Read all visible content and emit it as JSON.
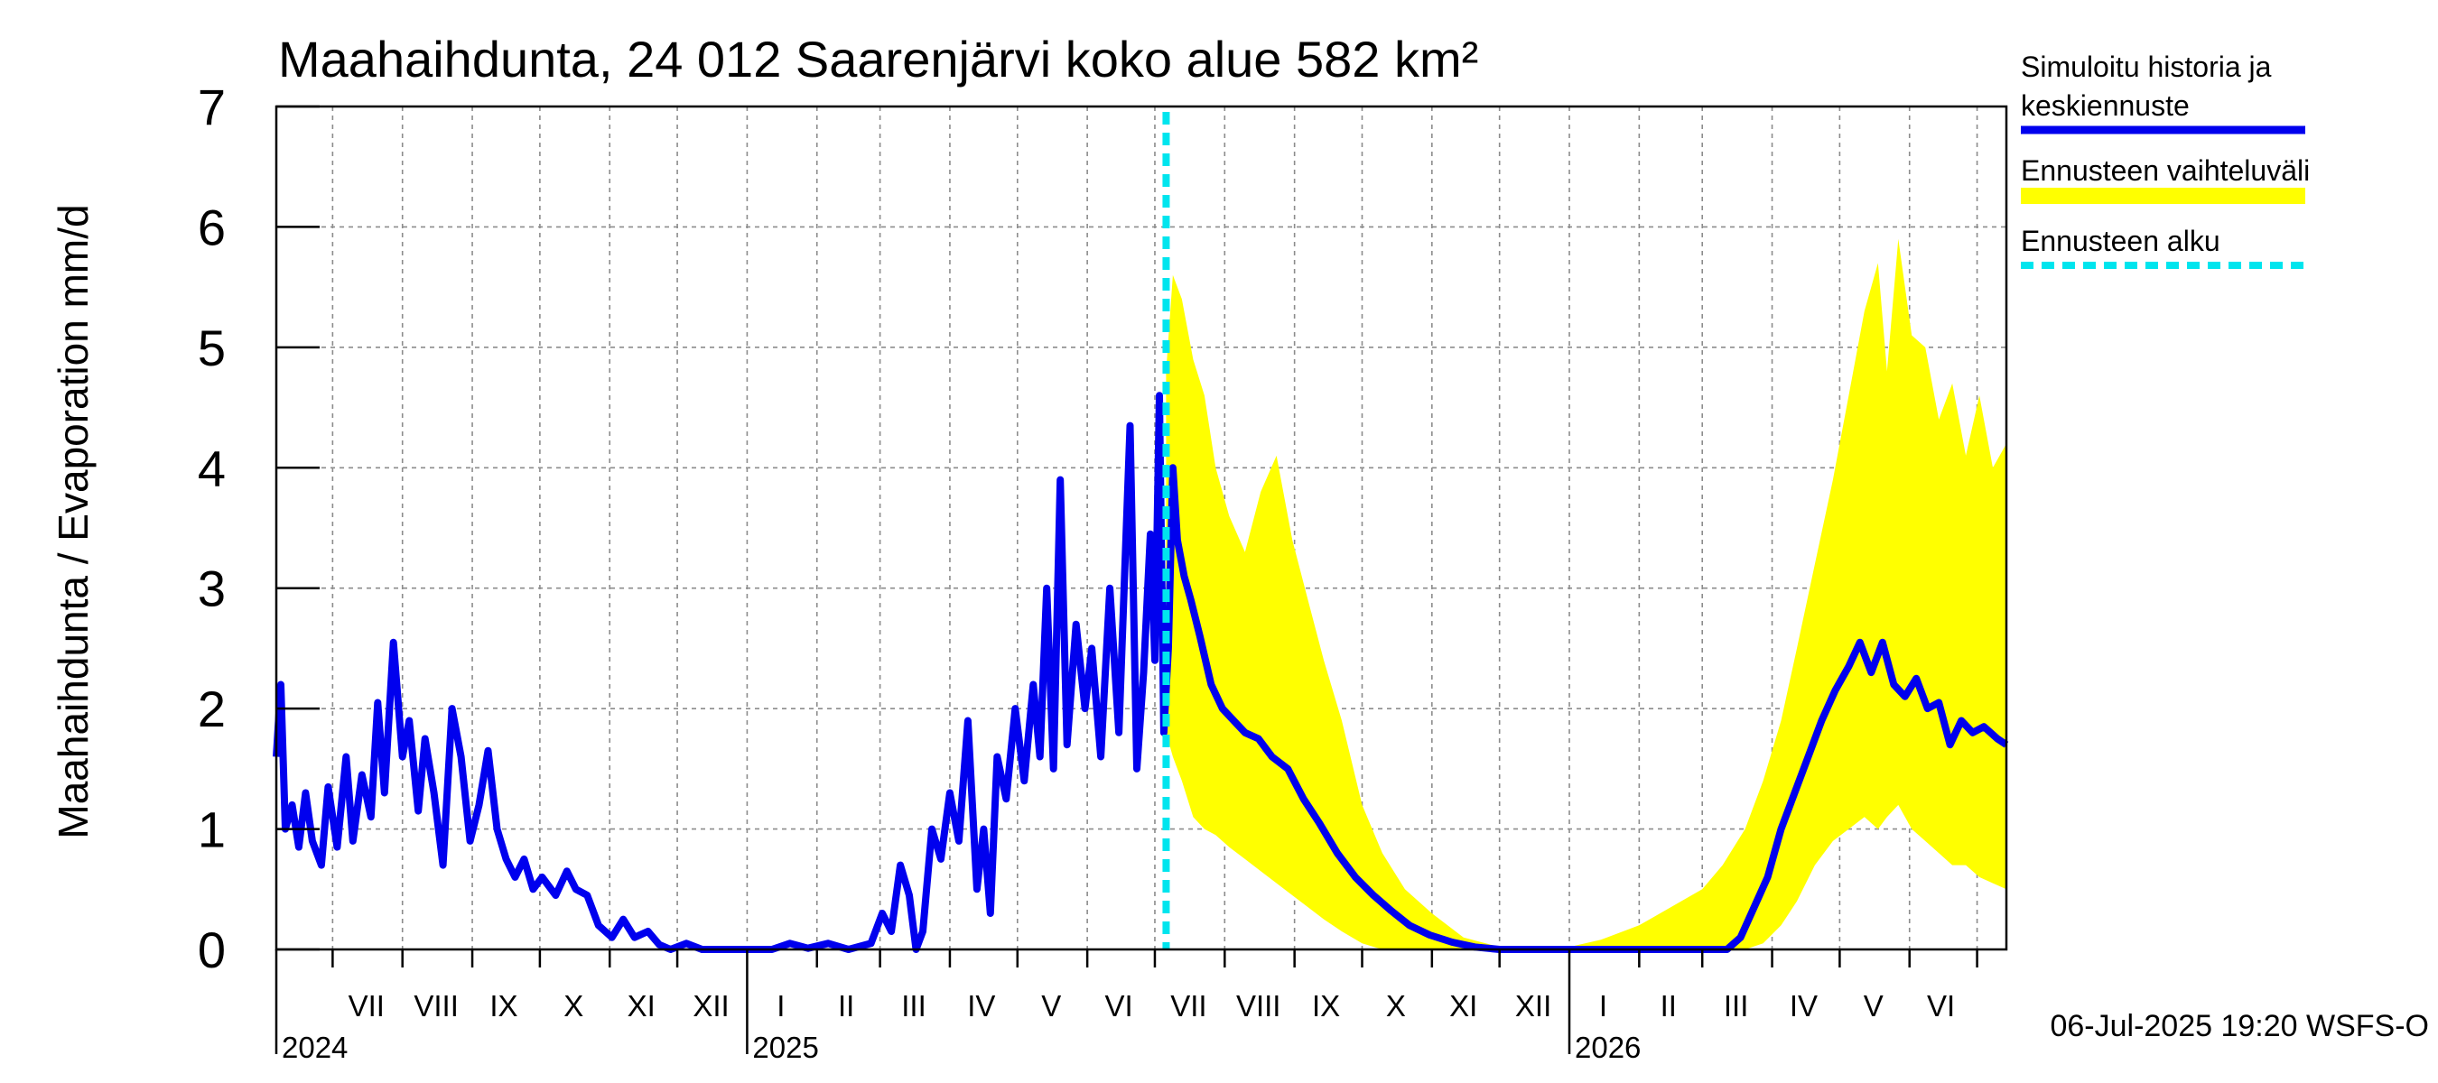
{
  "chart_data": {
    "type": "line",
    "title": "Maahaihdunta, 24 012 Saarenjärvi koko alue 582 km²",
    "ylabel": "Maahaihdunta / Evaporation   mm/d",
    "ylim": [
      0,
      7
    ],
    "yticks": [
      "0",
      "1",
      "2",
      "3",
      "4",
      "5",
      "6",
      "7"
    ],
    "grid": true,
    "legend_position": "right",
    "x_start": "2024-06-06",
    "x_end": "2026-07-14",
    "forecast_start": "2025-07-06",
    "month_labels": [
      {
        "label": "VII",
        "date": "2024-07-16"
      },
      {
        "label": "VIII",
        "date": "2024-08-16"
      },
      {
        "label": "IX",
        "date": "2024-09-15"
      },
      {
        "label": "X",
        "date": "2024-10-16"
      },
      {
        "label": "XI",
        "date": "2024-11-15"
      },
      {
        "label": "XII",
        "date": "2024-12-16"
      },
      {
        "label": "I",
        "date": "2025-01-16"
      },
      {
        "label": "II",
        "date": "2025-02-14"
      },
      {
        "label": "III",
        "date": "2025-03-16"
      },
      {
        "label": "IV",
        "date": "2025-04-15"
      },
      {
        "label": "V",
        "date": "2025-05-16"
      },
      {
        "label": "VI",
        "date": "2025-06-15"
      },
      {
        "label": "VII",
        "date": "2025-07-16"
      },
      {
        "label": "VIII",
        "date": "2025-08-16"
      },
      {
        "label": "IX",
        "date": "2025-09-15"
      },
      {
        "label": "X",
        "date": "2025-10-16"
      },
      {
        "label": "XI",
        "date": "2025-11-15"
      },
      {
        "label": "XII",
        "date": "2025-12-16"
      },
      {
        "label": "I",
        "date": "2026-01-16"
      },
      {
        "label": "II",
        "date": "2026-02-14"
      },
      {
        "label": "III",
        "date": "2026-03-16"
      },
      {
        "label": "IV",
        "date": "2026-04-15"
      },
      {
        "label": "V",
        "date": "2026-05-16"
      },
      {
        "label": "VI",
        "date": "2026-06-15"
      }
    ],
    "month_boundaries": [
      "2024-07-01",
      "2024-08-01",
      "2024-09-01",
      "2024-10-01",
      "2024-11-01",
      "2024-12-01",
      "2025-01-01",
      "2025-02-01",
      "2025-03-01",
      "2025-04-01",
      "2025-05-01",
      "2025-06-01",
      "2025-07-01",
      "2025-08-01",
      "2025-09-01",
      "2025-10-01",
      "2025-11-01",
      "2025-12-01",
      "2026-01-01",
      "2026-02-01",
      "2026-03-01",
      "2026-04-01",
      "2026-05-01",
      "2026-06-01",
      "2026-07-01"
    ],
    "year_labels": [
      {
        "label": "2024",
        "date": "2024-06-06"
      },
      {
        "label": "2025",
        "date": "2025-01-01"
      },
      {
        "label": "2026",
        "date": "2026-01-01"
      }
    ],
    "series": [
      {
        "name": "Simuloitu historia ja keskiennuste",
        "color": "#0000ee",
        "points": [
          [
            "2024-06-06",
            1.6
          ],
          [
            "2024-06-08",
            2.2
          ],
          [
            "2024-06-10",
            1.0
          ],
          [
            "2024-06-13",
            1.2
          ],
          [
            "2024-06-16",
            0.85
          ],
          [
            "2024-06-19",
            1.3
          ],
          [
            "2024-06-22",
            0.9
          ],
          [
            "2024-06-26",
            0.7
          ],
          [
            "2024-06-29",
            1.35
          ],
          [
            "2024-07-03",
            0.85
          ],
          [
            "2024-07-07",
            1.6
          ],
          [
            "2024-07-10",
            0.9
          ],
          [
            "2024-07-14",
            1.45
          ],
          [
            "2024-07-18",
            1.1
          ],
          [
            "2024-07-21",
            2.05
          ],
          [
            "2024-07-24",
            1.3
          ],
          [
            "2024-07-28",
            2.55
          ],
          [
            "2024-08-01",
            1.6
          ],
          [
            "2024-08-04",
            1.9
          ],
          [
            "2024-08-08",
            1.15
          ],
          [
            "2024-08-11",
            1.75
          ],
          [
            "2024-08-15",
            1.3
          ],
          [
            "2024-08-19",
            0.7
          ],
          [
            "2024-08-23",
            2.0
          ],
          [
            "2024-08-27",
            1.6
          ],
          [
            "2024-08-31",
            0.9
          ],
          [
            "2024-09-04",
            1.2
          ],
          [
            "2024-09-08",
            1.65
          ],
          [
            "2024-09-12",
            1.0
          ],
          [
            "2024-09-16",
            0.75
          ],
          [
            "2024-09-20",
            0.6
          ],
          [
            "2024-09-24",
            0.75
          ],
          [
            "2024-09-28",
            0.5
          ],
          [
            "2024-10-02",
            0.6
          ],
          [
            "2024-10-08",
            0.45
          ],
          [
            "2024-10-13",
            0.65
          ],
          [
            "2024-10-17",
            0.5
          ],
          [
            "2024-10-22",
            0.45
          ],
          [
            "2024-10-27",
            0.2
          ],
          [
            "2024-11-02",
            0.1
          ],
          [
            "2024-11-07",
            0.25
          ],
          [
            "2024-11-12",
            0.1
          ],
          [
            "2024-11-18",
            0.15
          ],
          [
            "2024-11-23",
            0.04
          ],
          [
            "2024-11-28",
            0.0
          ],
          [
            "2024-12-05",
            0.05
          ],
          [
            "2024-12-12",
            0.0
          ],
          [
            "2025-01-01",
            0.0
          ],
          [
            "2025-01-12",
            0.0
          ],
          [
            "2025-01-20",
            0.05
          ],
          [
            "2025-01-28",
            0.01
          ],
          [
            "2025-02-06",
            0.05
          ],
          [
            "2025-02-15",
            0.0
          ],
          [
            "2025-02-25",
            0.05
          ],
          [
            "2025-03-02",
            0.3
          ],
          [
            "2025-03-06",
            0.15
          ],
          [
            "2025-03-10",
            0.7
          ],
          [
            "2025-03-14",
            0.45
          ],
          [
            "2025-03-17",
            0.0
          ],
          [
            "2025-03-20",
            0.15
          ],
          [
            "2025-03-24",
            1.0
          ],
          [
            "2025-03-28",
            0.75
          ],
          [
            "2025-04-01",
            1.3
          ],
          [
            "2025-04-05",
            0.9
          ],
          [
            "2025-04-09",
            1.9
          ],
          [
            "2025-04-13",
            0.5
          ],
          [
            "2025-04-16",
            1.0
          ],
          [
            "2025-04-19",
            0.3
          ],
          [
            "2025-04-22",
            1.6
          ],
          [
            "2025-04-26",
            1.25
          ],
          [
            "2025-04-30",
            2.0
          ],
          [
            "2025-05-04",
            1.4
          ],
          [
            "2025-05-08",
            2.2
          ],
          [
            "2025-05-11",
            1.6
          ],
          [
            "2025-05-14",
            3.0
          ],
          [
            "2025-05-17",
            1.5
          ],
          [
            "2025-05-20",
            3.9
          ],
          [
            "2025-05-23",
            1.7
          ],
          [
            "2025-05-27",
            2.7
          ],
          [
            "2025-05-31",
            2.0
          ],
          [
            "2025-06-03",
            2.5
          ],
          [
            "2025-06-07",
            1.6
          ],
          [
            "2025-06-11",
            3.0
          ],
          [
            "2025-06-15",
            1.8
          ],
          [
            "2025-06-20",
            4.35
          ],
          [
            "2025-06-23",
            1.5
          ],
          [
            "2025-06-26",
            2.3
          ],
          [
            "2025-06-29",
            3.45
          ],
          [
            "2025-07-01",
            2.4
          ],
          [
            "2025-07-03",
            4.6
          ],
          [
            "2025-07-05",
            1.8
          ],
          [
            "2025-07-07",
            2.5
          ],
          [
            "2025-07-09",
            4.0
          ],
          [
            "2025-07-11",
            3.4
          ],
          [
            "2025-07-14",
            3.1
          ],
          [
            "2025-07-17",
            2.9
          ],
          [
            "2025-07-21",
            2.6
          ],
          [
            "2025-07-26",
            2.2
          ],
          [
            "2025-07-31",
            2.0
          ],
          [
            "2025-08-05",
            1.9
          ],
          [
            "2025-08-10",
            1.8
          ],
          [
            "2025-08-16",
            1.75
          ],
          [
            "2025-08-22",
            1.6
          ],
          [
            "2025-08-29",
            1.5
          ],
          [
            "2025-09-05",
            1.25
          ],
          [
            "2025-09-12",
            1.05
          ],
          [
            "2025-09-20",
            0.8
          ],
          [
            "2025-09-28",
            0.6
          ],
          [
            "2025-10-06",
            0.45
          ],
          [
            "2025-10-14",
            0.32
          ],
          [
            "2025-10-22",
            0.2
          ],
          [
            "2025-10-31",
            0.12
          ],
          [
            "2025-11-10",
            0.06
          ],
          [
            "2025-11-20",
            0.02
          ],
          [
            "2025-12-01",
            0.0
          ],
          [
            "2026-01-01",
            0.0
          ],
          [
            "2026-02-01",
            0.0
          ],
          [
            "2026-03-01",
            0.0
          ],
          [
            "2026-03-12",
            0.0
          ],
          [
            "2026-03-18",
            0.1
          ],
          [
            "2026-03-24",
            0.35
          ],
          [
            "2026-03-30",
            0.6
          ],
          [
            "2026-04-05",
            1.0
          ],
          [
            "2026-04-11",
            1.3
          ],
          [
            "2026-04-17",
            1.6
          ],
          [
            "2026-04-23",
            1.9
          ],
          [
            "2026-04-29",
            2.15
          ],
          [
            "2026-05-05",
            2.35
          ],
          [
            "2026-05-10",
            2.55
          ],
          [
            "2026-05-15",
            2.3
          ],
          [
            "2026-05-20",
            2.55
          ],
          [
            "2026-05-25",
            2.2
          ],
          [
            "2026-05-30",
            2.1
          ],
          [
            "2026-06-04",
            2.25
          ],
          [
            "2026-06-09",
            2.0
          ],
          [
            "2026-06-14",
            2.05
          ],
          [
            "2026-06-19",
            1.7
          ],
          [
            "2026-06-24",
            1.9
          ],
          [
            "2026-06-29",
            1.8
          ],
          [
            "2026-07-04",
            1.85
          ],
          [
            "2026-07-10",
            1.75
          ],
          [
            "2026-07-14",
            1.7
          ]
        ]
      },
      {
        "name": "Ennusteen vaihteluväli",
        "color": "#ffff00",
        "band": [
          [
            "2025-07-06",
            1.8,
            4.8
          ],
          [
            "2025-07-09",
            1.6,
            5.6
          ],
          [
            "2025-07-13",
            1.4,
            5.4
          ],
          [
            "2025-07-18",
            1.1,
            4.9
          ],
          [
            "2025-07-23",
            1.0,
            4.6
          ],
          [
            "2025-07-28",
            0.95,
            4.0
          ],
          [
            "2025-08-03",
            0.85,
            3.6
          ],
          [
            "2025-08-10",
            0.75,
            3.3
          ],
          [
            "2025-08-17",
            0.65,
            3.8
          ],
          [
            "2025-08-24",
            0.55,
            4.1
          ],
          [
            "2025-08-31",
            0.45,
            3.4
          ],
          [
            "2025-09-07",
            0.35,
            2.9
          ],
          [
            "2025-09-14",
            0.25,
            2.4
          ],
          [
            "2025-09-22",
            0.15,
            1.9
          ],
          [
            "2025-10-01",
            0.05,
            1.2
          ],
          [
            "2025-10-10",
            0.0,
            0.8
          ],
          [
            "2025-10-20",
            0.0,
            0.5
          ],
          [
            "2025-11-01",
            0.0,
            0.3
          ],
          [
            "2025-11-15",
            0.0,
            0.1
          ],
          [
            "2025-12-01",
            0.0,
            0.02
          ],
          [
            "2026-01-01",
            0.0,
            0.02
          ],
          [
            "2026-01-15",
            0.0,
            0.08
          ],
          [
            "2026-02-01",
            0.0,
            0.2
          ],
          [
            "2026-02-15",
            0.0,
            0.35
          ],
          [
            "2026-03-01",
            0.0,
            0.5
          ],
          [
            "2026-03-10",
            0.0,
            0.7
          ],
          [
            "2026-03-20",
            0.0,
            1.0
          ],
          [
            "2026-03-28",
            0.05,
            1.4
          ],
          [
            "2026-04-05",
            0.2,
            1.9
          ],
          [
            "2026-04-12",
            0.4,
            2.5
          ],
          [
            "2026-04-20",
            0.7,
            3.2
          ],
          [
            "2026-04-28",
            0.9,
            3.9
          ],
          [
            "2026-05-05",
            1.0,
            4.6
          ],
          [
            "2026-05-12",
            1.1,
            5.3
          ],
          [
            "2026-05-18",
            1.0,
            5.7
          ],
          [
            "2026-05-22",
            1.1,
            4.8
          ],
          [
            "2026-05-27",
            1.2,
            5.9
          ],
          [
            "2026-06-02",
            1.0,
            5.1
          ],
          [
            "2026-06-08",
            0.9,
            5.0
          ],
          [
            "2026-06-14",
            0.8,
            4.4
          ],
          [
            "2026-06-20",
            0.7,
            4.7
          ],
          [
            "2026-06-26",
            0.7,
            4.1
          ],
          [
            "2026-07-02",
            0.6,
            4.6
          ],
          [
            "2026-07-08",
            0.55,
            4.0
          ],
          [
            "2026-07-14",
            0.5,
            4.2
          ]
        ]
      },
      {
        "name": "Ennusteen alku",
        "color": "#00e5ee"
      }
    ],
    "footer": "06-Jul-2025 19:20 WSFS-O"
  }
}
